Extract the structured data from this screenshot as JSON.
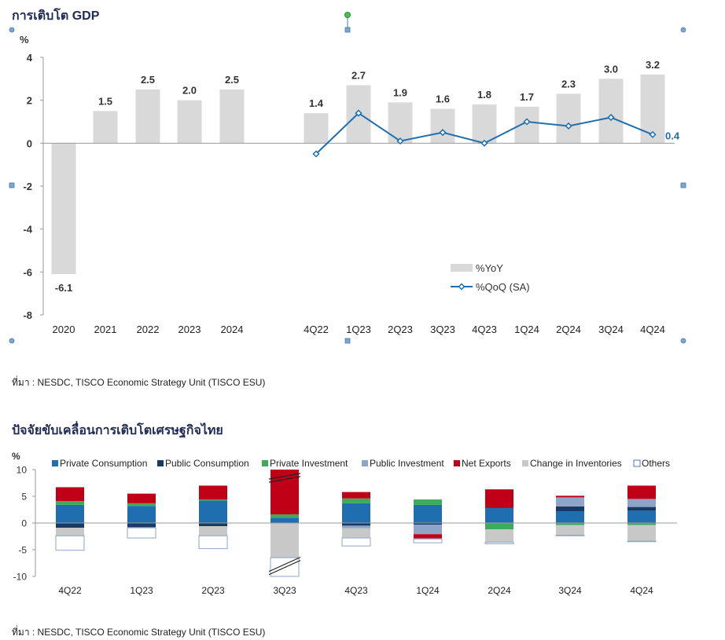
{
  "colors": {
    "yoy_bar": "#d9d9d9",
    "qoq_line": "#1f6fb0",
    "private_consumption": "#1f6fb0",
    "public_consumption": "#1a3a66",
    "private_investment": "#3daa5c",
    "public_investment": "#8ea5c8",
    "net_exports": "#c00016",
    "change_in_inventories": "#c8c8c8",
    "others": "#ffffff"
  },
  "chart1": {
    "title": "การเติบโต GDP",
    "source": "ที่มา : NESDC, TISCO Economic Strategy Unit (TISCO ESU)"
  },
  "chart2": {
    "title": "ปัจจัยขับเคลื่อนการเติบโตเศรษฐกิจไทย",
    "source": "ที่มา : NESDC, TISCO Economic Strategy Unit (TISCO ESU)"
  },
  "chart_data": [
    {
      "type": "bar",
      "title": "การเติบโต GDP",
      "ylabel": "%",
      "ylim": [
        -8,
        4
      ],
      "yticks": [
        4,
        2,
        0,
        -2,
        -4,
        -6,
        -8
      ],
      "categories": [
        "2020",
        "2021",
        "2022",
        "2023",
        "2024",
        "4Q22",
        "1Q23",
        "2Q23",
        "3Q23",
        "4Q23",
        "1Q24",
        "2Q24",
        "3Q24",
        "4Q24"
      ],
      "series": [
        {
          "name": "%YoY",
          "kind": "bar",
          "values": [
            -6.1,
            1.5,
            2.5,
            2.0,
            2.5,
            1.4,
            2.7,
            1.9,
            1.6,
            1.8,
            1.7,
            2.3,
            3.0,
            3.2
          ],
          "labels": [
            "-6.1",
            "1.5",
            "2.5",
            "2.0",
            "2.5",
            "1.4",
            "2.7",
            "1.9",
            "1.6",
            "1.8",
            "1.7",
            "2.3",
            "3.0",
            "3.2"
          ]
        },
        {
          "name": "%QoQ (SA)",
          "kind": "line",
          "values": [
            null,
            null,
            null,
            null,
            null,
            -0.5,
            1.4,
            0.1,
            0.5,
            0.0,
            1.0,
            0.8,
            1.2,
            0.4
          ],
          "labels": [
            null,
            null,
            null,
            null,
            null,
            null,
            null,
            null,
            null,
            null,
            null,
            null,
            null,
            "0.4"
          ]
        }
      ],
      "legend": "bottom-right",
      "grid": false
    },
    {
      "type": "bar",
      "stacked": true,
      "title": "ปัจจัยขับเคลื่อนการเติบโตเศรษฐกิจไทย",
      "ylabel": "%",
      "ylim": [
        -10,
        10
      ],
      "yticks": [
        10,
        5,
        0,
        -5,
        -10
      ],
      "categories": [
        "4Q22",
        "1Q23",
        "2Q23",
        "3Q23",
        "4Q23",
        "1Q24",
        "2Q24",
        "3Q24",
        "4Q24"
      ],
      "legend": "top",
      "grid": false,
      "series": [
        {
          "name": "Private Consumption",
          "color_key": "private_consumption",
          "values": [
            3.4,
            3.2,
            4.2,
            1.0,
            3.7,
            3.4,
            2.8,
            2.2,
            2.3
          ]
        },
        {
          "name": "Public Consumption",
          "color_key": "public_consumption",
          "values": [
            -0.9,
            -0.8,
            -0.6,
            0,
            -0.5,
            -0.3,
            0,
            0.9,
            0.7
          ]
        },
        {
          "name": "Private Investment",
          "color_key": "private_investment",
          "values": [
            0.7,
            0.5,
            0.2,
            0.6,
            0.9,
            1.0,
            -1.2,
            -0.4,
            -0.4
          ]
        },
        {
          "name": "Public Investment",
          "color_key": "public_investment",
          "values": [
            0,
            0,
            0,
            0,
            -0.5,
            -1.8,
            0,
            1.7,
            1.5
          ]
        },
        {
          "name": "Net Exports",
          "color_key": "net_exports",
          "values": [
            2.6,
            1.8,
            2.6,
            8.4,
            1.2,
            -0.8,
            3.5,
            0.3,
            2.5
          ]
        },
        {
          "name": "Change in Inventories",
          "color_key": "change_in_inventories",
          "values": [
            -1.5,
            -0.1,
            -1.8,
            -6.5,
            -1.8,
            -0.1,
            -2.4,
            -1.9,
            -3.0
          ]
        },
        {
          "name": "Others",
          "color_key": "others",
          "values": [
            -2.7,
            -1.9,
            -2.4,
            -3.5,
            -1.5,
            -0.7,
            -0.3,
            -0.1,
            -0.1
          ]
        }
      ]
    }
  ]
}
